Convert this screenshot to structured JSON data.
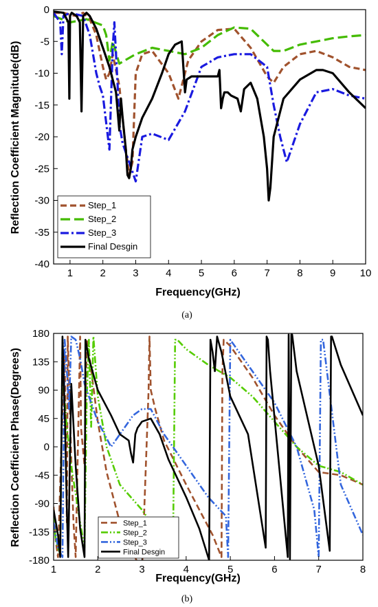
{
  "chart_data": [
    {
      "panel": "(a)",
      "type": "line",
      "xlabel": "Frequency(GHz)",
      "ylabel": "Reflection Coefficient Magnitude(dB)",
      "xlim": [
        0.5,
        10
      ],
      "ylim": [
        -40,
        0
      ],
      "xticks": [
        1,
        2,
        3,
        4,
        5,
        6,
        7,
        8,
        9,
        10
      ],
      "yticks": [
        0,
        -5,
        -10,
        -15,
        -20,
        -25,
        -30,
        -35,
        -40
      ],
      "legend_position": "bottom-left",
      "grid": false,
      "series": [
        {
          "name": "Step_1",
          "color": "#a0522d",
          "dash": "dash",
          "x": [
            0.5,
            0.8,
            1.0,
            1.2,
            1.4,
            1.6,
            1.8,
            2.0,
            2.1,
            2.2,
            2.3,
            2.5,
            2.7,
            2.8,
            2.9,
            3.0,
            3.2,
            3.5,
            4.0,
            4.3,
            4.6,
            5.0,
            5.5,
            6.0,
            6.5,
            7.0,
            7.2,
            7.5,
            8.0,
            8.5,
            9.0,
            9.5,
            10.0
          ],
          "y": [
            -0.5,
            -0.5,
            -0.8,
            -1.0,
            -0.5,
            -1.5,
            -4.0,
            -9.0,
            -11.0,
            -10.0,
            -7.0,
            -12.0,
            -22.0,
            -26.0,
            -24.0,
            -10.0,
            -7.0,
            -6.5,
            -10.0,
            -14.0,
            -8.0,
            -5.0,
            -3.2,
            -3.0,
            -6.0,
            -10.5,
            -11.5,
            -9.0,
            -7.0,
            -6.5,
            -7.5,
            -9.0,
            -9.5
          ]
        },
        {
          "name": "Step_2",
          "color": "#44bb00",
          "dash": "longdash",
          "x": [
            0.5,
            1.0,
            1.5,
            2.0,
            2.1,
            2.2,
            2.3,
            2.5,
            3.0,
            3.5,
            4.0,
            4.5,
            5.0,
            5.5,
            6.0,
            6.5,
            7.0,
            7.2,
            7.5,
            8.0,
            8.5,
            9.0,
            9.5,
            10.0
          ],
          "y": [
            -1.0,
            -2.0,
            -1.5,
            -2.5,
            -4.0,
            -8.0,
            -5.0,
            -8.5,
            -7.0,
            -6.0,
            -6.5,
            -7.0,
            -6.0,
            -4.0,
            -2.8,
            -3.0,
            -5.5,
            -6.5,
            -6.5,
            -5.5,
            -5.0,
            -4.5,
            -4.2,
            -4.0
          ]
        },
        {
          "name": "Step_3",
          "color": "#1a1adf",
          "dash": "dashdot",
          "x": [
            0.5,
            0.7,
            0.75,
            0.8,
            1.0,
            1.4,
            1.6,
            1.8,
            1.9,
            2.0,
            2.2,
            2.3,
            2.35,
            2.45,
            2.5,
            2.6,
            2.8,
            3.0,
            3.2,
            3.5,
            4.0,
            4.5,
            5.0,
            5.5,
            6.0,
            6.5,
            7.0,
            7.2,
            7.4,
            7.6,
            8.0,
            8.5,
            9.0,
            9.5,
            10.0
          ],
          "y": [
            -0.5,
            -2.0,
            -7.0,
            -1.0,
            -0.5,
            -1.0,
            -4.0,
            -10.0,
            -12.0,
            -13.5,
            -22.0,
            -6.0,
            -2.0,
            -12.0,
            -18.0,
            -21.0,
            -24.0,
            -27.0,
            -20.0,
            -19.5,
            -20.5,
            -16.0,
            -9.0,
            -7.5,
            -7.0,
            -7.0,
            -9.0,
            -15.0,
            -20.0,
            -24.0,
            -18.0,
            -13.0,
            -12.5,
            -13.5,
            -14.0
          ]
        },
        {
          "name": "Final Desgin",
          "color": "#000000",
          "dash": "solid",
          "x": [
            0.5,
            0.8,
            0.95,
            0.98,
            1.0,
            1.05,
            1.2,
            1.3,
            1.35,
            1.4,
            1.5,
            1.6,
            1.8,
            2.0,
            2.2,
            2.4,
            2.5,
            2.55,
            2.6,
            2.7,
            2.75,
            2.8,
            2.85,
            2.9,
            3.0,
            3.2,
            3.5,
            3.8,
            4.0,
            4.2,
            4.4,
            4.5,
            4.55,
            4.7,
            5.0,
            5.5,
            5.55,
            5.6,
            5.65,
            5.7,
            5.8,
            5.9,
            6.1,
            6.2,
            6.3,
            6.5,
            6.7,
            6.9,
            7.0,
            7.05,
            7.1,
            7.2,
            7.5,
            8.0,
            8.5,
            8.7,
            9.0,
            9.5,
            10.0
          ],
          "y": [
            -0.3,
            -0.5,
            -2.0,
            -14.0,
            -1.0,
            -0.5,
            -1.0,
            -2.0,
            -16.0,
            -1.0,
            -0.5,
            -1.0,
            -3.0,
            -6.0,
            -9.0,
            -13.0,
            -19.0,
            -14.0,
            -17.0,
            -22.0,
            -26.0,
            -26.5,
            -25.0,
            -22.0,
            -20.0,
            -17.0,
            -14.0,
            -10.0,
            -7.0,
            -5.5,
            -5.0,
            -13.0,
            -11.0,
            -10.5,
            -10.5,
            -10.5,
            -9.5,
            -15.5,
            -14.0,
            -13.0,
            -13.0,
            -13.5,
            -14.0,
            -16.0,
            -12.5,
            -11.5,
            -14.0,
            -20.0,
            -25.0,
            -30.0,
            -28.0,
            -20.0,
            -14.0,
            -11.0,
            -9.5,
            -9.5,
            -10.0,
            -13.0,
            -15.5
          ]
        }
      ]
    },
    {
      "panel": "(b)",
      "type": "line",
      "xlabel": "Frequency(GHz)",
      "ylabel": "Reflection Coefficient Phase(Degrees)",
      "xlim": [
        1,
        8
      ],
      "ylim": [
        -180,
        180
      ],
      "xticks": [
        1,
        2,
        3,
        4,
        5,
        6,
        7,
        8
      ],
      "yticks": [
        180,
        135,
        90,
        45,
        0,
        -45,
        -90,
        -135,
        -180
      ],
      "legend_position": "bottom-center",
      "grid": false,
      "series": [
        {
          "name": "Step_1",
          "color": "#a0522d",
          "dash": "dash",
          "x": [
            1.0,
            1.05,
            1.1,
            1.2,
            1.25,
            1.3,
            1.32,
            1.4,
            1.45,
            1.5,
            1.6,
            1.62,
            1.7,
            1.75,
            1.8,
            2.0,
            2.2,
            2.5,
            3.0,
            3.15,
            3.17,
            3.2,
            3.3,
            3.5,
            4.0,
            4.3,
            4.6,
            4.8,
            4.82,
            4.85,
            5.0,
            5.5,
            6.0,
            6.5,
            7.0,
            7.5,
            8.0
          ],
          "y": [
            -95,
            -150,
            -175,
            60,
            150,
            -120,
            175,
            -20,
            -120,
            -175,
            175,
            30,
            -30,
            170,
            150,
            40,
            -40,
            -120,
            -200,
            90,
            175,
            90,
            60,
            10,
            -60,
            -100,
            -140,
            -175,
            120,
            170,
            160,
            110,
            50,
            0,
            -40,
            -45,
            -60
          ]
        },
        {
          "name": "Step_2",
          "color": "#55cc00",
          "dash": "dashdotdot",
          "x": [
            1.0,
            1.05,
            1.15,
            1.2,
            1.22,
            1.3,
            1.4,
            1.6,
            1.7,
            1.75,
            1.8,
            1.85,
            1.9,
            2.0,
            2.2,
            2.5,
            3.0,
            3.3,
            3.6,
            3.7,
            3.75,
            3.8,
            4.0,
            4.5,
            5.0,
            5.5,
            6.0,
            6.5,
            7.0,
            7.5,
            8.0
          ],
          "y": [
            -110,
            -150,
            -170,
            170,
            100,
            30,
            -30,
            -120,
            -160,
            80,
            170,
            30,
            175,
            80,
            0,
            -60,
            -100,
            -130,
            -170,
            -175,
            170,
            170,
            155,
            130,
            110,
            80,
            40,
            0,
            -30,
            -40,
            -60
          ]
        },
        {
          "name": "Step_3",
          "color": "#3366dd",
          "dash": "dashdotdot",
          "x": [
            1.0,
            1.1,
            1.2,
            1.25,
            1.3,
            1.35,
            1.4,
            1.5,
            1.6,
            1.7,
            1.8,
            2.0,
            2.3,
            2.6,
            2.8,
            3.0,
            3.2,
            3.5,
            4.0,
            4.5,
            4.9,
            4.95,
            5.0,
            5.5,
            6.0,
            6.5,
            6.9,
            7.0,
            7.05,
            7.1,
            7.5,
            8.0
          ],
          "y": [
            -120,
            -160,
            -175,
            170,
            120,
            60,
            175,
            170,
            140,
            100,
            80,
            40,
            0,
            30,
            50,
            60,
            60,
            20,
            -30,
            -80,
            -110,
            -175,
            170,
            120,
            70,
            0,
            -100,
            -175,
            170,
            170,
            -60,
            -140
          ]
        },
        {
          "name": "Final Desgin",
          "color": "#000000",
          "dash": "solid",
          "x": [
            1.0,
            1.1,
            1.15,
            1.2,
            1.25,
            1.3,
            1.33,
            1.4,
            1.5,
            1.6,
            1.7,
            1.72,
            1.8,
            2.0,
            2.3,
            2.5,
            2.7,
            2.75,
            2.8,
            2.85,
            2.9,
            3.0,
            3.2,
            3.4,
            3.6,
            4.0,
            4.3,
            4.52,
            4.55,
            4.6,
            4.65,
            4.7,
            4.8,
            5.0,
            5.4,
            5.8,
            5.82,
            5.85,
            5.9,
            6.3,
            6.32,
            6.35,
            6.38,
            6.4,
            6.5,
            6.7,
            7.0,
            7.25,
            7.28,
            7.3,
            7.5,
            8.0
          ],
          "y": [
            -100,
            -140,
            -175,
            175,
            60,
            -100,
            -175,
            100,
            -30,
            -130,
            -175,
            170,
            140,
            90,
            50,
            20,
            10,
            -10,
            -25,
            20,
            30,
            40,
            45,
            20,
            -20,
            -80,
            -130,
            -180,
            170,
            150,
            120,
            175,
            150,
            80,
            20,
            -160,
            175,
            170,
            120,
            -175,
            178,
            -178,
            178,
            178,
            120,
            60,
            -30,
            -165,
            175,
            175,
            130,
            50
          ]
        }
      ]
    }
  ]
}
